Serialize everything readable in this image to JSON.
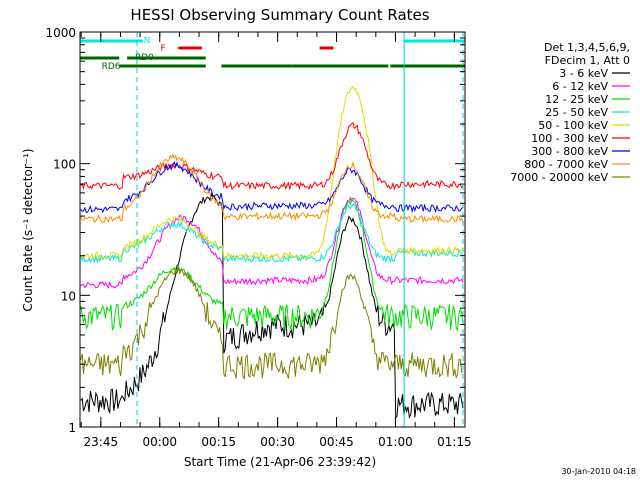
{
  "chart_data": {
    "type": "line",
    "title": "HESSI Observing Summary Count Rates",
    "xlabel": "Start Time (21-Apr-06 23:39:42)",
    "ylabel": "Count Rate (s⁻¹ detector⁻¹)",
    "yscale": "log",
    "ylim": [
      1,
      1000
    ],
    "xlim_minutes_after_2339": [
      0,
      98
    ],
    "x_ticks": [
      {
        "label": "23:45",
        "t": 5.3
      },
      {
        "label": "00:00",
        "t": 20.3
      },
      {
        "label": "00:15",
        "t": 35.3
      },
      {
        "label": "00:30",
        "t": 50.3
      },
      {
        "label": "00:45",
        "t": 65.3
      },
      {
        "label": "01:00",
        "t": 80.3
      },
      {
        "label": "01:15",
        "t": 95.3
      }
    ],
    "y_ticks": [
      {
        "label": "1",
        "v": 1
      },
      {
        "label": "10",
        "v": 10
      },
      {
        "label": "100",
        "v": 100
      },
      {
        "label": "1000",
        "v": 1000
      }
    ],
    "legend_header": [
      "Det 1,3,4,5,6,9,",
      "FDecim 1, Att 0"
    ],
    "legend_position": "right",
    "footer_timestamp": "30-Jan-2010 04:18",
    "flags": [
      {
        "label": "N",
        "color": "#00e5e5",
        "segments": [
          [
            0,
            16
          ],
          [
            82.5,
            98
          ]
        ],
        "level": 0
      },
      {
        "label": "F",
        "color": "#e00000",
        "segments": [
          [
            25,
            31
          ],
          [
            61,
            64.5
          ]
        ],
        "level": 1
      },
      {
        "label": "RD0",
        "color": "#006400",
        "segments": [
          [
            0,
            10
          ],
          [
            12,
            32
          ]
        ],
        "level": 2
      },
      {
        "label": "RD6",
        "color": "#006400",
        "segments": [
          [
            10,
            32
          ],
          [
            36,
            54
          ],
          [
            54,
            78.5
          ],
          [
            79,
            92
          ],
          [
            92,
            98
          ]
        ],
        "level": 3
      }
    ],
    "vlines": [
      {
        "t": 14.5,
        "dashed": true
      },
      {
        "t": 82.5,
        "dashed": false
      },
      {
        "t": 97.5,
        "dashed": true
      }
    ],
    "series": [
      {
        "name": "3 - 6 keV",
        "color": "#000000",
        "quiet_start": 1.6,
        "quiet_mid": 6,
        "quiet_end": 1.5,
        "peak1": 55,
        "peak1_t": 33,
        "peak2": 38,
        "peak2_t": 69
      },
      {
        "name": "6 - 12 keV",
        "color": "#ff00ff",
        "quiet_start": 12,
        "quiet_mid": 13,
        "quiet_end": 13,
        "peak1": 37,
        "peak1_t": 26,
        "peak2": 55,
        "peak2_t": 69
      },
      {
        "name": "12 - 25 keV",
        "color": "#00dd00",
        "quiet_start": 7,
        "quiet_mid": 7,
        "quiet_end": 7,
        "peak1": 15,
        "peak1_t": 24,
        "peak2": 52,
        "peak2_t": 69
      },
      {
        "name": "25 - 50 keV",
        "color": "#00e5e5",
        "quiet_start": 19,
        "quiet_mid": 19,
        "quiet_end": 21,
        "peak1": 32,
        "peak1_t": 24,
        "peak2": 48,
        "peak2_t": 69
      },
      {
        "name": "50 - 100 keV",
        "color": "#dddd00",
        "quiet_start": 20,
        "quiet_mid": 20,
        "quiet_end": 22,
        "peak1": 35,
        "peak1_t": 24,
        "peak2": 380,
        "peak2_t": 69.5
      },
      {
        "name": "100 - 300 keV",
        "color": "#ff0000",
        "quiet_start": 68,
        "quiet_mid": 68,
        "quiet_end": 70,
        "peak1": 88,
        "peak1_t": 24,
        "peak2": 195,
        "peak2_t": 69.5
      },
      {
        "name": "300 - 800 keV",
        "color": "#0000ff",
        "quiet_start": 45,
        "quiet_mid": 48,
        "quiet_end": 46,
        "peak1": 90,
        "peak1_t": 24,
        "peak2": 90,
        "peak2_t": 69
      },
      {
        "name": "800 - 7000 keV",
        "color": "#ff8c00",
        "quiet_start": 38,
        "quiet_mid": 40,
        "quiet_end": 38,
        "peak1": 105,
        "peak1_t": 24,
        "peak2": 98,
        "peak2_t": 69
      },
      {
        "name": "7000 - 20000 keV",
        "color": "#808000",
        "quiet_start": 3,
        "quiet_mid": 3,
        "quiet_end": 3,
        "peak1": 15,
        "peak1_t": 25,
        "peak2": 14,
        "peak2_t": 69
      }
    ]
  }
}
